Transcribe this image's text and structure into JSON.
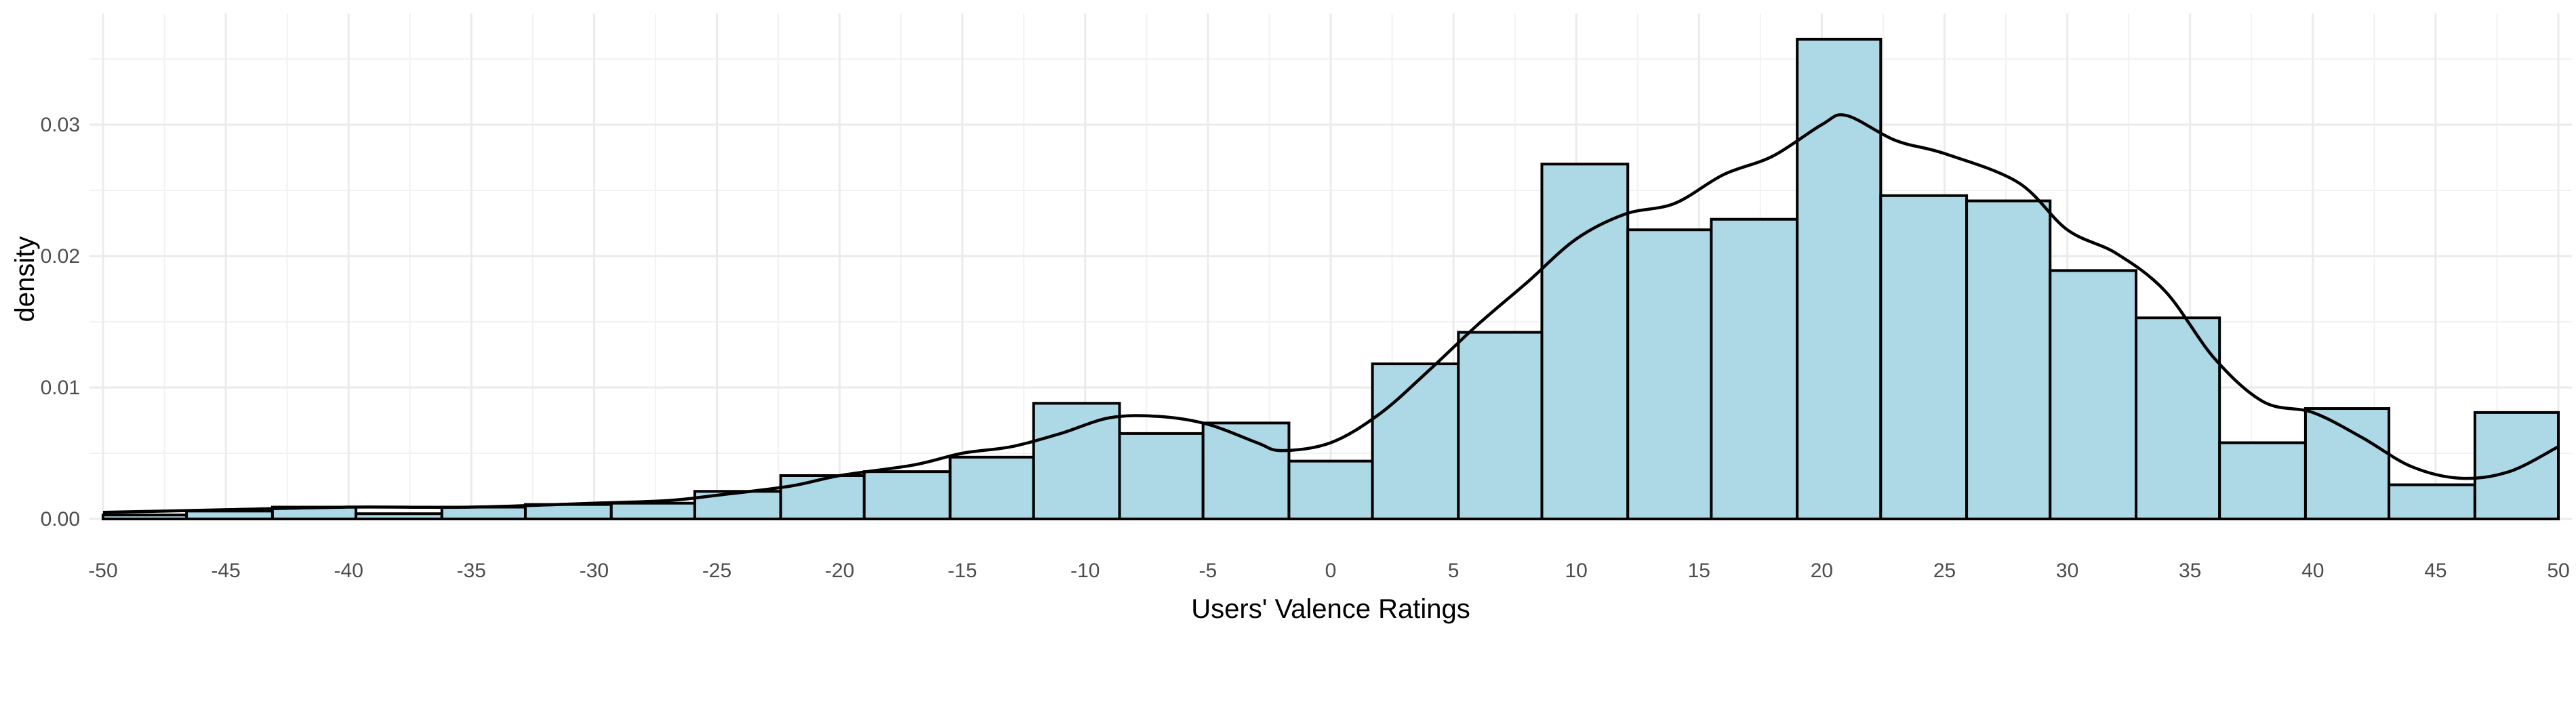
{
  "chart_data": {
    "type": "bar",
    "title": "",
    "xlabel": "Users' Valence Ratings",
    "ylabel": "density",
    "xlim": [
      -50,
      50
    ],
    "ylim": [
      0,
      0.0365
    ],
    "x_ticks": [
      -50,
      -45,
      -40,
      -35,
      -30,
      -25,
      -20,
      -15,
      -10,
      -5,
      0,
      5,
      10,
      15,
      20,
      25,
      30,
      35,
      40,
      45,
      50
    ],
    "x_tick_labels": [
      "-50",
      "-45",
      "-40",
      "-35",
      "-30",
      "-25",
      "-20",
      "-15",
      "-10",
      "-5",
      "0",
      "5",
      "10",
      "15",
      "20",
      "25",
      "30",
      "35",
      "40",
      "45",
      "50"
    ],
    "y_ticks": [
      0,
      0.01,
      0.02,
      0.03
    ],
    "y_tick_labels": [
      "0.00",
      "0.01",
      "0.02",
      "0.03"
    ],
    "grid": true,
    "legend": "none",
    "bar_color": "#add8e6",
    "edge_color": "#000000",
    "bins": [
      {
        "x0": -50.0,
        "x1": -46.6,
        "density": 0.0003
      },
      {
        "x0": -46.6,
        "x1": -43.1,
        "density": 0.0006
      },
      {
        "x0": -43.1,
        "x1": -39.7,
        "density": 0.0009
      },
      {
        "x0": -39.7,
        "x1": -36.2,
        "density": 0.0004
      },
      {
        "x0": -36.2,
        "x1": -32.8,
        "density": 0.0009
      },
      {
        "x0": -32.8,
        "x1": -29.3,
        "density": 0.0011
      },
      {
        "x0": -29.3,
        "x1": -25.9,
        "density": 0.0012
      },
      {
        "x0": -25.9,
        "x1": -22.4,
        "density": 0.0021
      },
      {
        "x0": -22.4,
        "x1": -19.0,
        "density": 0.0033
      },
      {
        "x0": -19.0,
        "x1": -15.5,
        "density": 0.0036
      },
      {
        "x0": -15.5,
        "x1": -12.1,
        "density": 0.0047
      },
      {
        "x0": -12.1,
        "x1": -8.6,
        "density": 0.0088
      },
      {
        "x0": -8.6,
        "x1": -5.2,
        "density": 0.0065
      },
      {
        "x0": -5.2,
        "x1": -1.7,
        "density": 0.0073
      },
      {
        "x0": -1.7,
        "x1": 1.7,
        "density": 0.0044
      },
      {
        "x0": 1.7,
        "x1": 5.2,
        "density": 0.0118
      },
      {
        "x0": 5.2,
        "x1": 8.6,
        "density": 0.0142
      },
      {
        "x0": 8.6,
        "x1": 12.1,
        "density": 0.027
      },
      {
        "x0": 12.1,
        "x1": 15.5,
        "density": 0.022
      },
      {
        "x0": 15.5,
        "x1": 19.0,
        "density": 0.0228
      },
      {
        "x0": 19.0,
        "x1": 22.4,
        "density": 0.0365
      },
      {
        "x0": 22.4,
        "x1": 25.9,
        "density": 0.0246
      },
      {
        "x0": 25.9,
        "x1": 29.3,
        "density": 0.0242
      },
      {
        "x0": 29.3,
        "x1": 32.8,
        "density": 0.0189
      },
      {
        "x0": 32.8,
        "x1": 36.2,
        "density": 0.0153
      },
      {
        "x0": 36.2,
        "x1": 39.7,
        "density": 0.0058
      },
      {
        "x0": 39.7,
        "x1": 43.1,
        "density": 0.0084
      },
      {
        "x0": 43.1,
        "x1": 46.6,
        "density": 0.0026
      },
      {
        "x0": 46.6,
        "x1": 50.0,
        "density": 0.0081
      }
    ],
    "density_curve": {
      "x": [
        -50,
        -45,
        -40,
        -35,
        -30,
        -27,
        -25,
        -22,
        -20,
        -17,
        -15,
        -13,
        -11,
        -9,
        -7,
        -5,
        -3,
        -2,
        0,
        2,
        4,
        6,
        8,
        10,
        12,
        14,
        16,
        18,
        20,
        21,
        23,
        25,
        28,
        30,
        32,
        34,
        36,
        38,
        40,
        42,
        44,
        46,
        48,
        50
      ],
      "y": [
        0.0005,
        0.0007,
        0.0009,
        0.0009,
        0.0012,
        0.0014,
        0.0018,
        0.0025,
        0.0033,
        0.0041,
        0.005,
        0.0055,
        0.0065,
        0.0077,
        0.0078,
        0.0072,
        0.0058,
        0.0052,
        0.0058,
        0.008,
        0.0113,
        0.0148,
        0.018,
        0.0213,
        0.0232,
        0.024,
        0.0262,
        0.0276,
        0.03,
        0.0307,
        0.0288,
        0.0278,
        0.0256,
        0.022,
        0.0202,
        0.0173,
        0.0122,
        0.0089,
        0.0081,
        0.0062,
        0.004,
        0.0031,
        0.0036,
        0.0055
      ]
    }
  }
}
